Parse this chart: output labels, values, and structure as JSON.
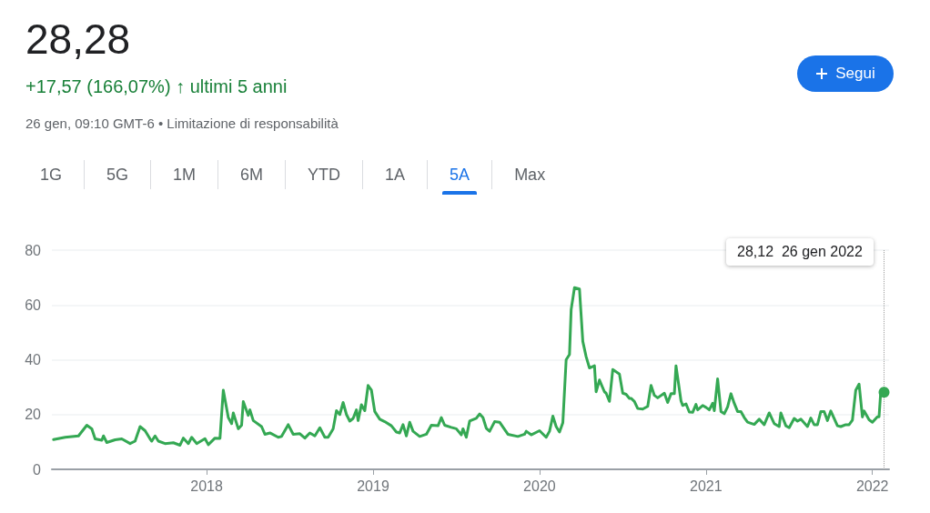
{
  "chart_data": {
    "type": "line",
    "title": "28,28",
    "subtitle": "+17,57 (166,07%) ↑ ultimi 5 anni",
    "annotations": [
      "26 gen, 09:10 GMT-6 • Limitazione di responsabilità",
      "Segui",
      "1G",
      "5G",
      "1M",
      "6M",
      "YTD",
      "1A",
      "5A",
      "Max",
      "28,12  26 gen 2022"
    ],
    "x": [
      2017.08,
      2017.15,
      2017.23,
      2017.28,
      2017.31,
      2017.33,
      2017.37,
      2017.38,
      2017.4,
      2017.45,
      2017.49,
      2017.54,
      2017.57,
      2017.6,
      2017.63,
      2017.66,
      2017.67,
      2017.69,
      2017.71,
      2017.75,
      2017.8,
      2017.84,
      2017.86,
      2017.89,
      2017.91,
      2017.94,
      2017.99,
      2018.01,
      2018.05,
      2018.08,
      2018.1,
      2018.13,
      2018.15,
      2018.16,
      2018.19,
      2018.21,
      2018.22,
      2018.25,
      2018.26,
      2018.28,
      2018.33,
      2018.35,
      2018.38,
      2018.43,
      2018.45,
      2018.49,
      2018.52,
      2018.56,
      2018.59,
      2018.62,
      2018.65,
      2018.68,
      2018.71,
      2018.73,
      2018.76,
      2018.78,
      2018.8,
      2018.82,
      2018.84,
      2018.86,
      2018.88,
      2018.9,
      2018.91,
      2018.93,
      2018.95,
      2018.97,
      2018.99,
      2019.01,
      2019.04,
      2019.07,
      2019.11,
      2019.14,
      2019.16,
      2019.18,
      2019.2,
      2019.22,
      2019.24,
      2019.28,
      2019.32,
      2019.35,
      2019.39,
      2019.41,
      2019.43,
      2019.47,
      2019.5,
      2019.53,
      2019.54,
      2019.56,
      2019.58,
      2019.62,
      2019.64,
      2019.66,
      2019.68,
      2019.7,
      2019.73,
      2019.76,
      2019.81,
      2019.87,
      2019.91,
      2019.92,
      2019.95,
      2020.0,
      2020.04,
      2020.06,
      2020.08,
      2020.1,
      2020.12,
      2020.14,
      2020.16,
      2020.18,
      2020.19,
      2020.21,
      2020.24,
      2020.26,
      2020.28,
      2020.3,
      2020.33,
      2020.34,
      2020.36,
      2020.39,
      2020.4,
      2020.42,
      2020.44,
      2020.48,
      2020.5,
      2020.52,
      2020.54,
      2020.55,
      2020.57,
      2020.59,
      2020.62,
      2020.65,
      2020.67,
      2020.69,
      2020.71,
      2020.75,
      2020.77,
      2020.79,
      2020.81,
      2020.82,
      2020.85,
      2020.86,
      2020.88,
      2020.9,
      2020.92,
      2020.94,
      2020.95,
      2020.98,
      2021.0,
      2021.02,
      2021.04,
      2021.05,
      2021.07,
      2021.09,
      2021.11,
      2021.13,
      2021.15,
      2021.17,
      2021.19,
      2021.21,
      2021.23,
      2021.25,
      2021.29,
      2021.32,
      2021.35,
      2021.38,
      2021.41,
      2021.44,
      2021.45,
      2021.48,
      2021.5,
      2021.53,
      2021.55,
      2021.57,
      2021.61,
      2021.63,
      2021.65,
      2021.67,
      2021.69,
      2021.71,
      2021.73,
      2021.75,
      2021.79,
      2021.81,
      2021.84,
      2021.86,
      2021.88,
      2021.9,
      2021.92,
      2021.94,
      2021.95,
      2021.98,
      2022.0,
      2022.03,
      2022.04,
      2022.05,
      2022.07
    ],
    "series": [
      {
        "color": "#34a853",
        "values": [
          10.9,
          11.7,
          12.2,
          16.1,
          14.8,
          11.1,
          10.6,
          12.2,
          9.8,
          10.8,
          11.1,
          9.4,
          10.3,
          15.6,
          14.1,
          11.1,
          10.3,
          12.2,
          10.3,
          9.4,
          9.7,
          8.8,
          11.4,
          9.4,
          11.7,
          9.4,
          11.2,
          9.0,
          11.4,
          11.3,
          28.9,
          18.9,
          16.7,
          20.6,
          14.8,
          16.1,
          24.7,
          19.7,
          21.7,
          17.8,
          15.6,
          12.8,
          13.3,
          11.7,
          12.0,
          16.3,
          12.8,
          13.0,
          11.4,
          13.3,
          12.2,
          15.2,
          11.7,
          11.7,
          14.8,
          21.4,
          20.0,
          24.4,
          20.0,
          17.6,
          18.6,
          21.7,
          17.8,
          23.6,
          21.4,
          30.6,
          28.9,
          21.1,
          18.3,
          17.4,
          15.9,
          13.6,
          13.3,
          16.3,
          12.2,
          17.2,
          13.9,
          12.0,
          12.8,
          16.1,
          15.9,
          18.9,
          16.1,
          15.3,
          14.8,
          12.6,
          14.8,
          11.7,
          17.6,
          18.6,
          20.2,
          18.9,
          15.0,
          13.9,
          17.4,
          17.2,
          12.8,
          12.0,
          12.8,
          13.9,
          12.6,
          14.1,
          11.7,
          13.9,
          19.4,
          15.6,
          13.6,
          17.0,
          40.0,
          41.9,
          58.3,
          66.3,
          65.8,
          46.7,
          41.1,
          37.0,
          37.8,
          28.3,
          32.6,
          28.3,
          27.8,
          24.8,
          36.4,
          34.8,
          27.8,
          27.4,
          25.9,
          25.9,
          24.8,
          22.2,
          22.0,
          23.0,
          30.6,
          27.0,
          26.1,
          27.8,
          24.4,
          27.6,
          27.6,
          37.8,
          25.0,
          23.3,
          23.9,
          20.9,
          20.8,
          23.7,
          21.7,
          23.3,
          22.6,
          21.7,
          24.1,
          21.4,
          33.0,
          21.1,
          20.3,
          22.8,
          27.6,
          24.1,
          21.1,
          21.1,
          18.9,
          17.2,
          16.4,
          18.3,
          16.3,
          20.6,
          16.7,
          15.6,
          20.6,
          15.9,
          15.2,
          18.6,
          17.6,
          18.3,
          15.6,
          18.7,
          16.3,
          16.3,
          21.1,
          21.1,
          17.8,
          21.3,
          15.9,
          15.6,
          16.3,
          16.3,
          18.0,
          28.9,
          31.1,
          19.1,
          21.3,
          18.1,
          17.2,
          19.2,
          19.2,
          28.3,
          28.12
        ]
      }
    ],
    "xlim": [
      2017.07,
      2022.1
    ],
    "xticks": [
      2018,
      2019,
      2020,
      2021,
      2022
    ],
    "ylim": [
      0,
      80
    ],
    "yticks": [
      0,
      20,
      40,
      60,
      80
    ],
    "grid": "y",
    "marker": "none",
    "line_style": "solid",
    "ref_lines": [
      {
        "axis": "x",
        "value": 2022.07,
        "label": null,
        "color": "#9e9e9e",
        "line_style": "dotted"
      }
    ]
  }
}
